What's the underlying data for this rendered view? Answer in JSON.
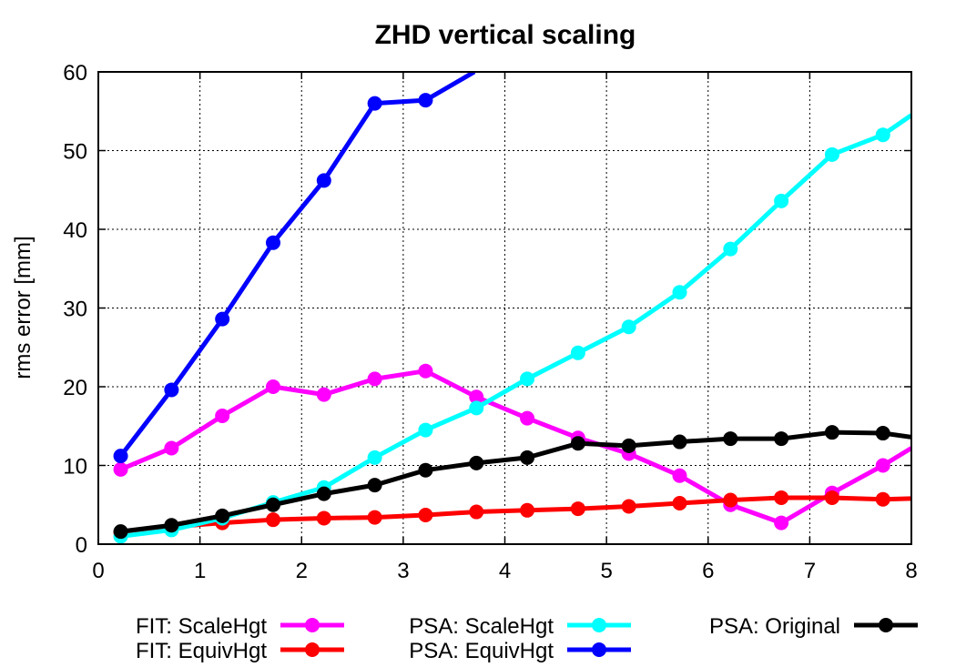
{
  "chart_data": {
    "type": "line",
    "title": "ZHD vertical scaling",
    "xlabel": "",
    "ylabel": "rms error [mm]",
    "xlim": [
      0,
      8
    ],
    "ylim": [
      0,
      60
    ],
    "xticks": [
      "0",
      "1",
      "2",
      "3",
      "4",
      "5",
      "6",
      "7",
      "8"
    ],
    "yticks": [
      "0",
      "10",
      "20",
      "30",
      "40",
      "50",
      "60"
    ],
    "grid": true,
    "legend_position": "bottom",
    "x": [
      0.22,
      0.72,
      1.22,
      1.72,
      2.22,
      2.72,
      3.22,
      3.72,
      4.22,
      4.72,
      5.22,
      5.72,
      6.22,
      6.72,
      7.22,
      7.72
    ],
    "series": [
      {
        "name": "FIT: ScaleHgt",
        "color": "#ff00ff",
        "values": [
          9.5,
          12.2,
          16.3,
          20.0,
          19.0,
          21.0,
          22.0,
          18.7,
          16.0,
          13.5,
          11.5,
          8.7,
          5.0,
          2.7,
          6.5,
          10.0
        ],
        "line_end": [
          8.0,
          12.2
        ]
      },
      {
        "name": "FIT: EquivHgt",
        "color": "#ff0000",
        "values": [
          1.5,
          2.2,
          2.7,
          3.1,
          3.3,
          3.4,
          3.7,
          4.1,
          4.3,
          4.5,
          4.8,
          5.2,
          5.6,
          5.9,
          5.9,
          5.7
        ],
        "line_end": [
          8.0,
          5.8
        ]
      },
      {
        "name": "PSA: ScaleHgt",
        "color": "#00ffff",
        "values": [
          1.0,
          1.8,
          3.3,
          5.3,
          7.2,
          11.0,
          14.5,
          17.3,
          21.0,
          24.3,
          27.6,
          32.0,
          37.5,
          43.6,
          49.5,
          52.0
        ],
        "line_end": [
          8.0,
          54.5
        ]
      },
      {
        "name": "PSA: EquivHgt",
        "color": "#0000ff",
        "values": [
          11.2,
          19.6,
          28.6,
          38.3,
          46.2,
          56.0,
          56.4,
          null,
          null,
          null,
          null,
          null,
          null,
          null,
          null,
          null
        ],
        "line_end": [
          3.7,
          60.0
        ]
      },
      {
        "name": "PSA: Original",
        "color": "#000000",
        "values": [
          1.6,
          2.4,
          3.6,
          5.0,
          6.4,
          7.5,
          9.4,
          10.3,
          11.0,
          12.8,
          12.5,
          13.0,
          13.4,
          13.4,
          14.2,
          14.1
        ],
        "line_end": [
          8.0,
          13.6
        ]
      }
    ]
  }
}
